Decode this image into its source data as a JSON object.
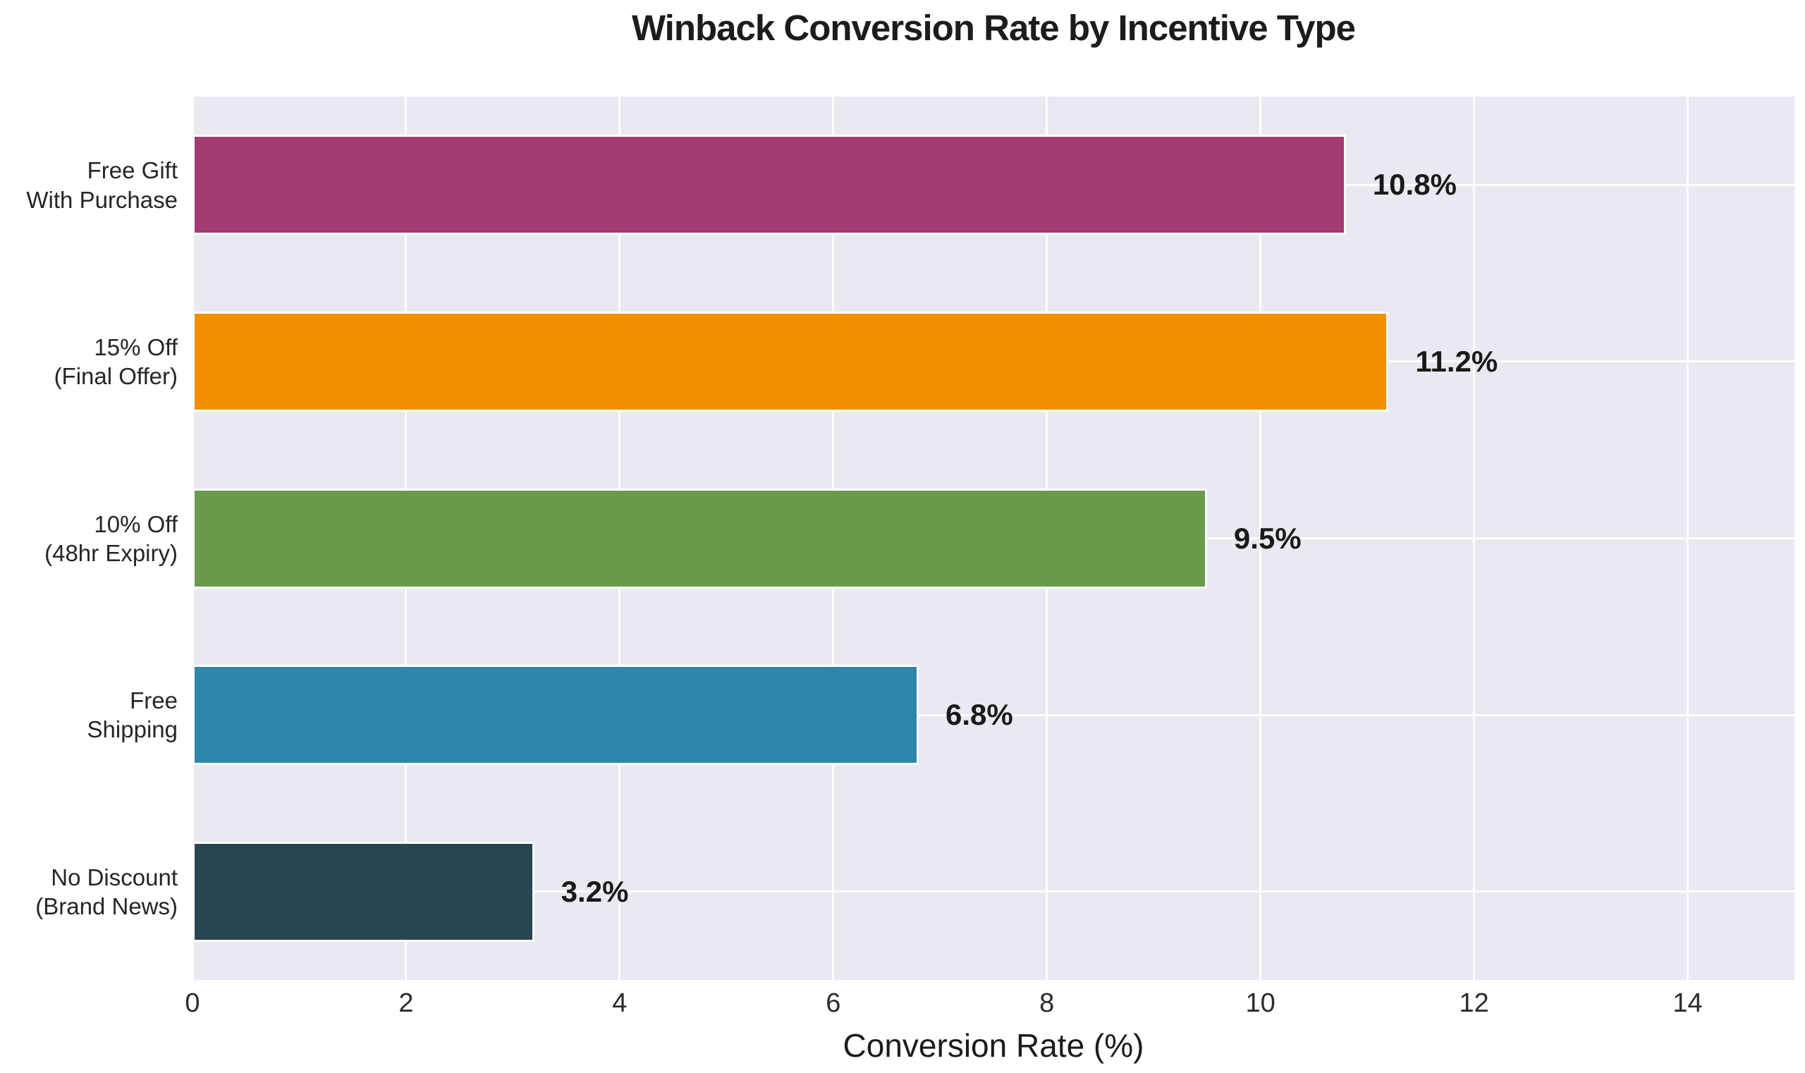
{
  "chart_data": {
    "type": "bar",
    "orientation": "horizontal",
    "title": "Winback Conversion Rate by Incentive Type",
    "xlabel": "Conversion Rate (%)",
    "ylabel": "",
    "categories": [
      "Free Gift\nWith Purchase",
      "15% Off\n(Final Offer)",
      "10% Off\n(48hr Expiry)",
      "Free\nShipping",
      "No Discount\n(Brand News)"
    ],
    "values": [
      10.8,
      11.2,
      9.5,
      6.8,
      3.2
    ],
    "value_labels": [
      "10.8%",
      "11.2%",
      "9.5%",
      "6.8%",
      "3.2%"
    ],
    "bar_colors": [
      "#a33b72",
      "#f18f00",
      "#6a9b4d",
      "#2e85ac",
      "#284551"
    ],
    "bar_edge_color": "#ffffff",
    "xlim": [
      0,
      15
    ],
    "xticks": [
      0,
      2,
      4,
      6,
      8,
      10,
      12,
      14
    ],
    "grid": true,
    "grid_color": "#ffffff",
    "plot_background": "#e9e9f2",
    "figure_background": "#ffffff",
    "legend_position": "none"
  }
}
